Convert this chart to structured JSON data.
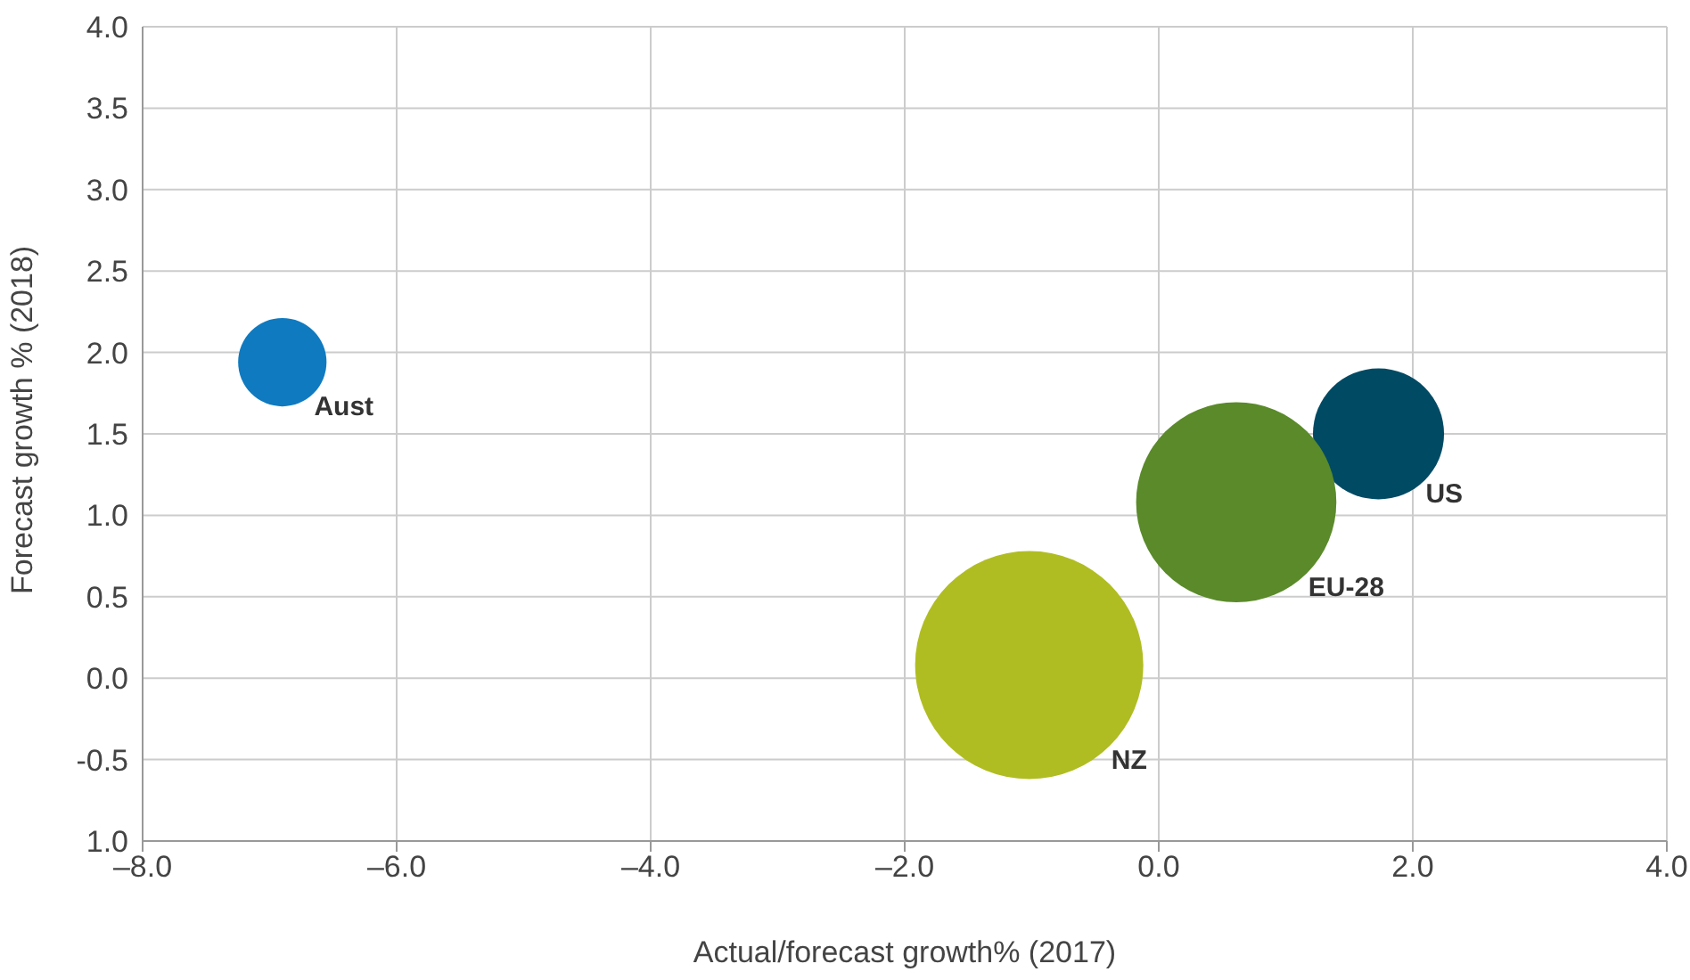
{
  "chart_data": {
    "type": "bubble",
    "xlabel": "Actual/forecast growth%  (2017)",
    "ylabel": "Forecast growth % (2018)",
    "xlim": [
      -8,
      4
    ],
    "xticks": [
      {
        "value": -8,
        "label": "–8.0"
      },
      {
        "value": -6,
        "label": "–6.0"
      },
      {
        "value": -4,
        "label": "–4.0"
      },
      {
        "value": -2,
        "label": "–2.0"
      },
      {
        "value": 0,
        "label": "0.0"
      },
      {
        "value": 2,
        "label": "2.0"
      },
      {
        "value": 4,
        "label": "4.0"
      }
    ],
    "ylim": [
      -1,
      4
    ],
    "yticks": [
      {
        "value": -1,
        "label": "1.0"
      },
      {
        "value": -0.5,
        "label": "-0.5"
      },
      {
        "value": 0,
        "label": "0.0"
      },
      {
        "value": 0.5,
        "label": "0.5"
      },
      {
        "value": 1,
        "label": "1.0"
      },
      {
        "value": 1.5,
        "label": "1.5"
      },
      {
        "value": 2,
        "label": "2.0"
      },
      {
        "value": 2.5,
        "label": "2.5"
      },
      {
        "value": 3,
        "label": "3.0"
      },
      {
        "value": 3.5,
        "label": "3.5"
      },
      {
        "value": 4,
        "label": "4.0"
      }
    ],
    "grid": true,
    "legend": false,
    "series": [
      {
        "name": "Aust",
        "color": "#0f7ac0",
        "x": [
          -6.9
        ],
        "values": [
          1.94
        ],
        "sizes": [
          0.15
        ]
      },
      {
        "name": "US",
        "color": "#004a63",
        "x": [
          1.73
        ],
        "values": [
          1.5
        ],
        "sizes": [
          0.33
        ]
      },
      {
        "name": "EU-28",
        "color": "#5a8a2a",
        "x": [
          0.61
        ],
        "values": [
          1.08
        ],
        "sizes": [
          0.77
        ]
      },
      {
        "name": "NZ",
        "color": "#b0bd22",
        "x": [
          -1.02
        ],
        "values": [
          0.08
        ],
        "sizes": [
          1
        ]
      }
    ]
  }
}
